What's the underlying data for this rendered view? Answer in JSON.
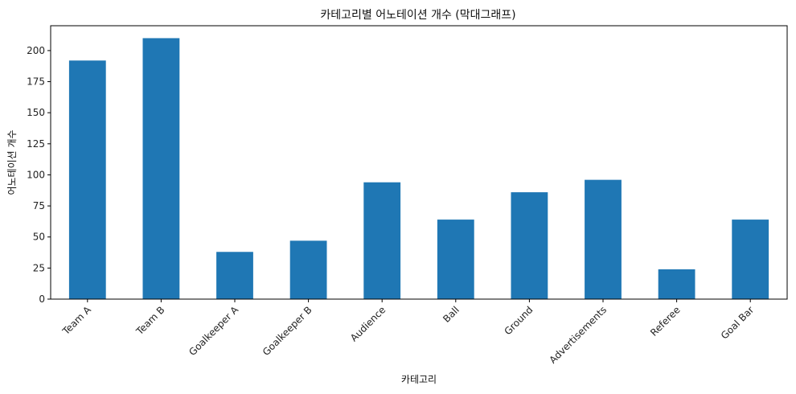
{
  "chart_data": {
    "type": "bar",
    "title": "카테고리별 어노테이션 개수 (막대그래프)",
    "xlabel": "카테고리",
    "ylabel": "어노테이션 개수",
    "categories": [
      "Team A",
      "Team B",
      "Goalkeeper A",
      "Goalkeeper B",
      "Audience",
      "Ball",
      "Ground",
      "Advertisements",
      "Referee",
      "Goal Bar"
    ],
    "values": [
      192,
      210,
      38,
      47,
      94,
      64,
      86,
      96,
      24,
      64
    ],
    "ylim": [
      0,
      220
    ],
    "yticks": [
      0,
      25,
      50,
      75,
      100,
      125,
      150,
      175,
      200
    ],
    "grid": false,
    "colors": {
      "bar": "#1f77b4",
      "axis": "#000000",
      "text": "#222222"
    }
  }
}
